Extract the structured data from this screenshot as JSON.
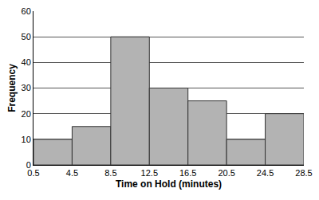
{
  "chart_data": {
    "type": "histogram",
    "x_label": "Time on Hold (minutes)",
    "y_label": "Frequency",
    "bins": [
      0.5,
      4.5,
      8.5,
      12.5,
      16.5,
      20.5,
      24.5,
      28.5
    ],
    "values": [
      10,
      15,
      50,
      30,
      25,
      10,
      20
    ],
    "color": "#b3b3b3",
    "xlim": [
      0.5,
      28.5
    ],
    "xticks": [
      0.5,
      4.5,
      8.5,
      12.5,
      16.5,
      20.5,
      24.5,
      28.5
    ],
    "ylim": [
      0,
      60
    ],
    "yticks": [
      0,
      10,
      20,
      30,
      40,
      50,
      60
    ],
    "grid": true
  }
}
